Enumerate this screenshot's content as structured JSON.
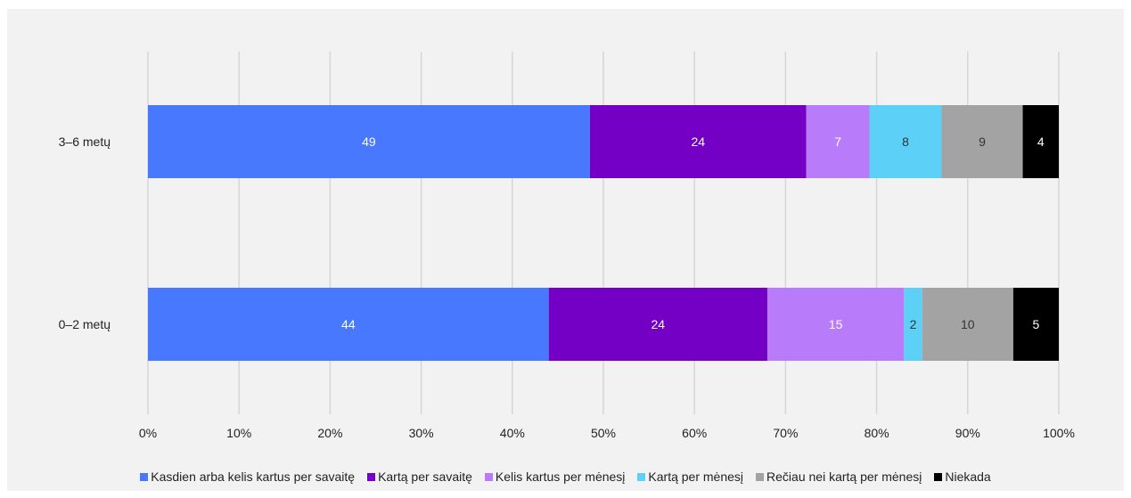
{
  "chart_data": {
    "type": "bar",
    "orientation": "horizontal",
    "stacked": "percent",
    "categories": [
      "3–6 metų",
      "0–2 metų"
    ],
    "series": [
      {
        "name": "Kasdien arba kelis kartus per savaitę",
        "values": [
          49,
          44
        ],
        "color": "#4778fe",
        "label_color": "#ffffff"
      },
      {
        "name": "Kartą per savaitę",
        "values": [
          24,
          24
        ],
        "color": "#7300c4",
        "label_color": "#ffffff"
      },
      {
        "name": "Kelis kartus per mėnesį",
        "values": [
          7,
          15
        ],
        "color": "#b87cfa",
        "label_color": "#ffffff"
      },
      {
        "name": "Kartą per mėnesį",
        "values": [
          8,
          2
        ],
        "color": "#5cd0f7",
        "label_color": "#333333"
      },
      {
        "name": "Rečiau nei kartą per mėnesį",
        "values": [
          9,
          10
        ],
        "color": "#a3a3a3",
        "label_color": "#333333"
      },
      {
        "name": "Niekada",
        "values": [
          4,
          5
        ],
        "color": "#000000",
        "label_color": "#ffffff"
      }
    ],
    "xlim": [
      0,
      100
    ],
    "xticks": [
      "0%",
      "10%",
      "20%",
      "30%",
      "40%",
      "50%",
      "60%",
      "70%",
      "80%",
      "90%",
      "100%"
    ],
    "grid": true,
    "legend_position": "bottom"
  }
}
